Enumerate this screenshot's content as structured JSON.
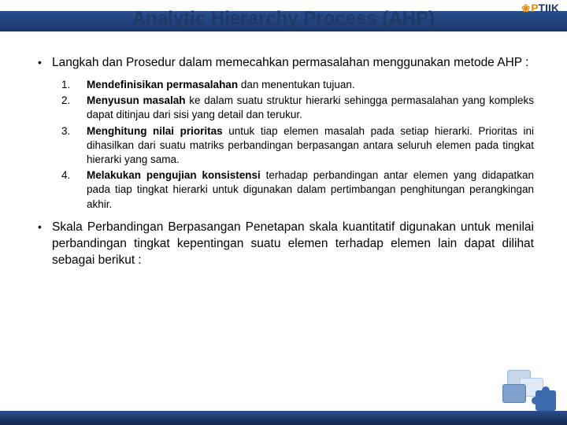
{
  "title": {
    "text": "Analytic Hierarchy Process (AHP)",
    "fontsize": 24,
    "color": "#1f3a66"
  },
  "logo": {
    "prefix_glyph": "❀",
    "p": "P",
    "rest": "TIIK"
  },
  "colors": {
    "stripe_top": "#2a4f8f",
    "stripe_bottom": "#1b386b",
    "footer_top": "#2a4f8f",
    "footer_bottom": "#122548",
    "title": "#1f3a66",
    "body_text": "#000000",
    "background": "#ffffff"
  },
  "bullets": [
    {
      "lead": "Langkah dan Prosedur dalam memecahkan permasalahan menggunakan metode AHP :",
      "numbered": [
        {
          "n": "1.",
          "bold": "Mendefinisikan permasalahan",
          "rest": " dan menentukan tujuan."
        },
        {
          "n": "2.",
          "bold": "Menyusun masalah",
          "rest": " ke dalam suatu struktur hierarki sehingga permasalahan yang kompleks dapat ditinjau dari sisi yang detail dan terukur."
        },
        {
          "n": "3.",
          "bold": "Menghitung nilai prioritas",
          "rest": " untuk tiap elemen masalah pada setiap hierarki. Prioritas ini dihasilkan dari suatu matriks perbandingan berpasangan antara seluruh elemen pada tingkat hierarki yang sama."
        },
        {
          "n": "4.",
          "bold": "Melakukan pengujian konsistensi",
          "rest": " terhadap perbandingan antar elemen yang didapatkan pada tiap tingkat hierarki untuk digunakan dalam pertimbangan penghitungan perangkingan akhir."
        }
      ]
    },
    {
      "lead": "Skala Perbandingan Berpasangan Penetapan skala kuantitatif digunakan untuk menilai perbandingan tingkat kepentingan suatu elemen terhadap elemen lain dapat dilihat sebagai berikut :"
    }
  ]
}
